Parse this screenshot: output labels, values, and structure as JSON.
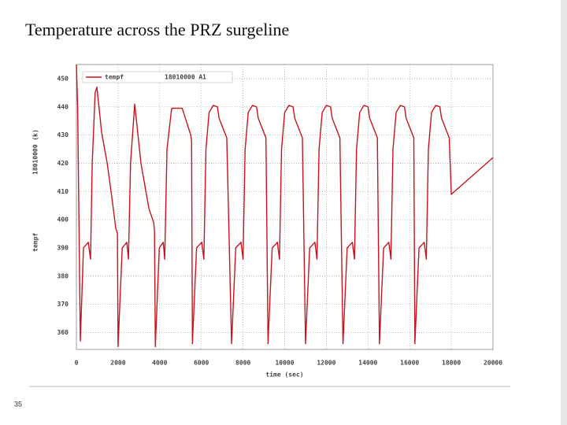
{
  "slide": {
    "title": "Temperature across the PRZ surgeline",
    "page_number": "35"
  },
  "chart_data": {
    "type": "line",
    "xlabel": "time (sec)",
    "ylabel": [
      "tempf",
      "18010000 (k)"
    ],
    "xlim": [
      0,
      20000
    ],
    "xticks": [
      0,
      2000,
      4000,
      6000,
      8000,
      10000,
      12000,
      14000,
      16000,
      18000,
      20000
    ],
    "ylim": [
      354,
      455
    ],
    "yticks": [
      360,
      370,
      380,
      390,
      400,
      410,
      420,
      430,
      440,
      450
    ],
    "grid": true,
    "legend": "upper left",
    "series": [
      {
        "name": "tempf",
        "label": "18010000 A1",
        "color": "#c8141e",
        "x": [
          0,
          60,
          190,
          340,
          570,
          680,
          760,
          900,
          985,
          1210,
          1480,
          1700,
          1890,
          1970,
          2000,
          2200,
          2420,
          2500,
          2600,
          2800,
          3100,
          3480,
          3710,
          3750,
          3790,
          3980,
          4170,
          4240,
          4350,
          4550,
          4580,
          5080,
          5490,
          5530,
          5570,
          5770,
          6020,
          6120,
          6220,
          6370,
          6570,
          6770,
          6850,
          7220,
          7450,
          7650,
          7900,
          8000,
          8100,
          8250,
          8450,
          8650,
          8730,
          9100,
          9200,
          9400,
          9650,
          9750,
          9850,
          10000,
          10200,
          10400,
          10480,
          10850,
          11000,
          11200,
          11450,
          11550,
          11650,
          11800,
          12000,
          12200,
          12280,
          12650,
          12800,
          13000,
          13250,
          13350,
          13450,
          13600,
          13800,
          14000,
          14080,
          14450,
          14550,
          14750,
          15000,
          15100,
          15200,
          15350,
          15550,
          15750,
          15830,
          16200,
          16250,
          16450,
          16700,
          16800,
          16900,
          17050,
          17250,
          17450,
          17530,
          17900,
          18000,
          20000
        ],
        "values": [
          455,
          440,
          357,
          390,
          392,
          386,
          420,
          445,
          447,
          431,
          420,
          408,
          397,
          395,
          355,
          390,
          392,
          386,
          420,
          441,
          420,
          404,
          399,
          396,
          355,
          390,
          392,
          386,
          425,
          438,
          439.5,
          439.5,
          430,
          428,
          356,
          390,
          392,
          386,
          425,
          438,
          440.5,
          440,
          436,
          429,
          356,
          390,
          392,
          386,
          425,
          438,
          440.5,
          440,
          436,
          429,
          356,
          390,
          392,
          386,
          425,
          438,
          440.5,
          440,
          436,
          429,
          356,
          390,
          392,
          386,
          425,
          438,
          440.5,
          440,
          436,
          429,
          356,
          390,
          392,
          386,
          425,
          438,
          440.5,
          440,
          436,
          429,
          356,
          390,
          392,
          386,
          425,
          438,
          440.5,
          440,
          436,
          429,
          356,
          390,
          392,
          386,
          425,
          438,
          440.5,
          440,
          436,
          429,
          409,
          422
        ]
      }
    ]
  }
}
